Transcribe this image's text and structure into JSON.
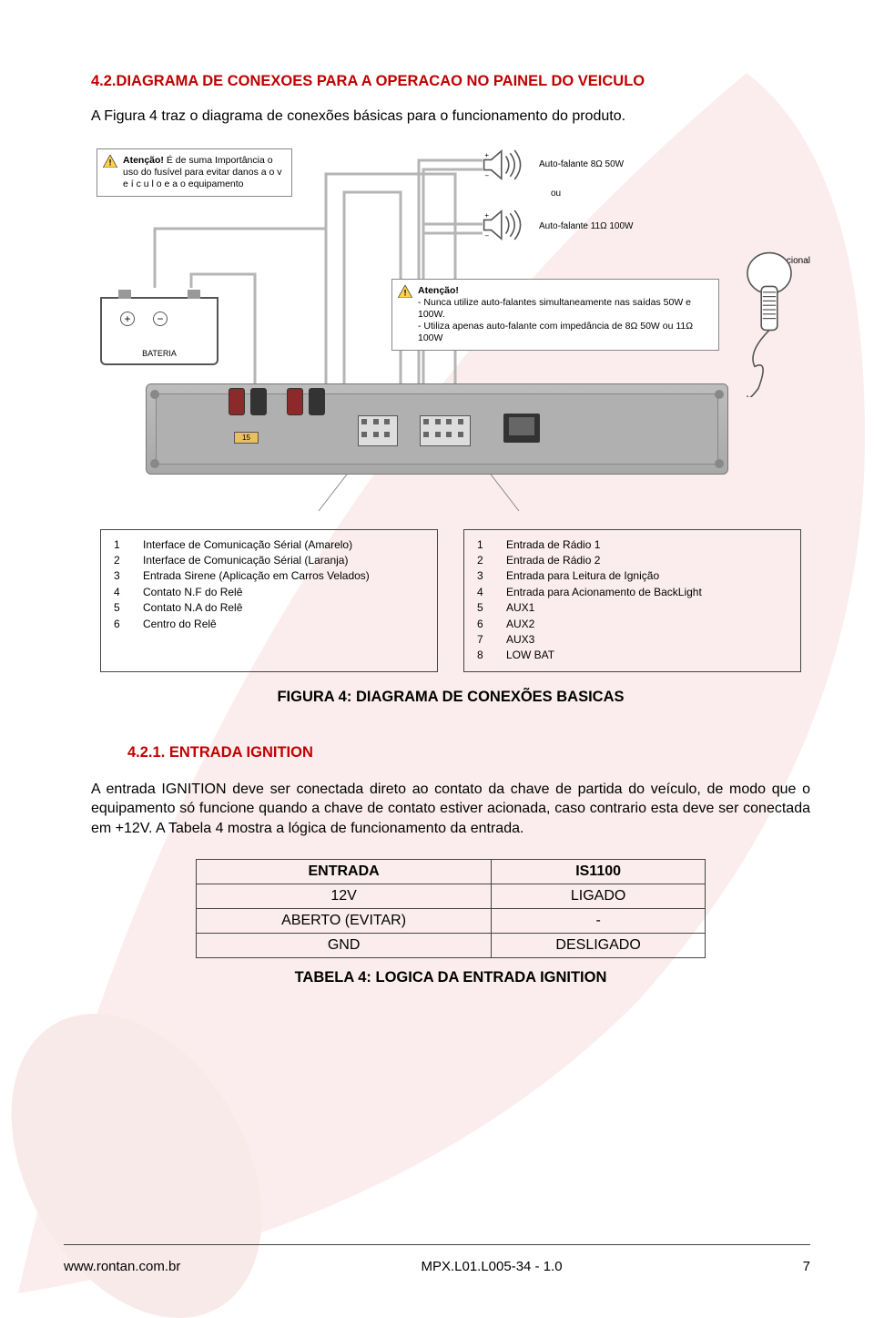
{
  "colors": {
    "accent": "#c00000",
    "text": "#000000",
    "border": "#444444",
    "device": "#b3b3b3"
  },
  "section": {
    "number": "4.2.",
    "title": "DIAGRAMA DE CONEXOES PARA A OPERACAO NO PAINEL DO VEICULO",
    "intro": "A Figura 4 traz o diagrama de conexões básicas para o funcionamento do produto."
  },
  "diagram": {
    "warn1_head": "Atenção!",
    "warn1_body": " É de suma Importância o uso do fusível para evitar danos a o  v e í c u l o  e  a o equipamento",
    "warn2_head": "Atenção!",
    "warn2_line1": " - Nunca utilize auto-falantes simultaneamente nas saídas 50W e 100W.",
    "warn2_line2": " -  Utiliza apenas auto-falante com impedância de 8Ω 50W ou 11Ω 100W",
    "speaker1": "Auto-falante 8Ω 50W",
    "speaker2": "Auto-falante 11Ω 100W",
    "ou": "ou",
    "opcional": "*Opcional",
    "bateria": "BATERIA",
    "fuse": "15"
  },
  "legend_left": [
    {
      "n": "1",
      "t": "Interface de Comunicação Sérial (Amarelo)"
    },
    {
      "n": "2",
      "t": "Interface de Comunicação Sérial (Laranja)"
    },
    {
      "n": "3",
      "t": "Entrada Sirene (Aplicação em Carros Velados)"
    },
    {
      "n": "4",
      "t": "Contato N.F do Relê"
    },
    {
      "n": "5",
      "t": "Contato N.A do Relê"
    },
    {
      "n": "6",
      "t": "Centro do Relê"
    }
  ],
  "legend_right": [
    {
      "n": "1",
      "t": "Entrada de Rádio 1"
    },
    {
      "n": "2",
      "t": "Entrada de Rádio 2"
    },
    {
      "n": "3",
      "t": "Entrada para Leitura de Ignição"
    },
    {
      "n": "4",
      "t": "Entrada para Acionamento de BackLight"
    },
    {
      "n": "5",
      "t": "AUX1"
    },
    {
      "n": "6",
      "t": "AUX2"
    },
    {
      "n": "7",
      "t": "AUX3"
    },
    {
      "n": "8",
      "t": "LOW BAT"
    }
  ],
  "figure_caption": "FIGURA 4: DIAGRAMA DE CONEXÕES BASICAS",
  "subsection": {
    "number": "4.2.1.",
    "title": "ENTRADA IGNITION",
    "body": "A entrada IGNITION deve ser conectada direto ao contato da chave de partida do veículo, de modo que o equipamento só funcione quando a chave de contato estiver acionada, caso contrario esta deve ser conectada em +12V. A Tabela 4 mostra a lógica de funcionamento da entrada."
  },
  "table4": {
    "headers": [
      "ENTRADA",
      "IS1100"
    ],
    "rows": [
      [
        "12V",
        "LIGADO"
      ],
      [
        "ABERTO (EVITAR)",
        "-"
      ],
      [
        "GND",
        "DESLIGADO"
      ]
    ],
    "caption": "TABELA 4: LOGICA DA ENTRADA IGNITION"
  },
  "footer": {
    "url": "www.rontan.com.br",
    "doc": "MPX.L01.L005-34 - 1.0",
    "page": "7"
  }
}
